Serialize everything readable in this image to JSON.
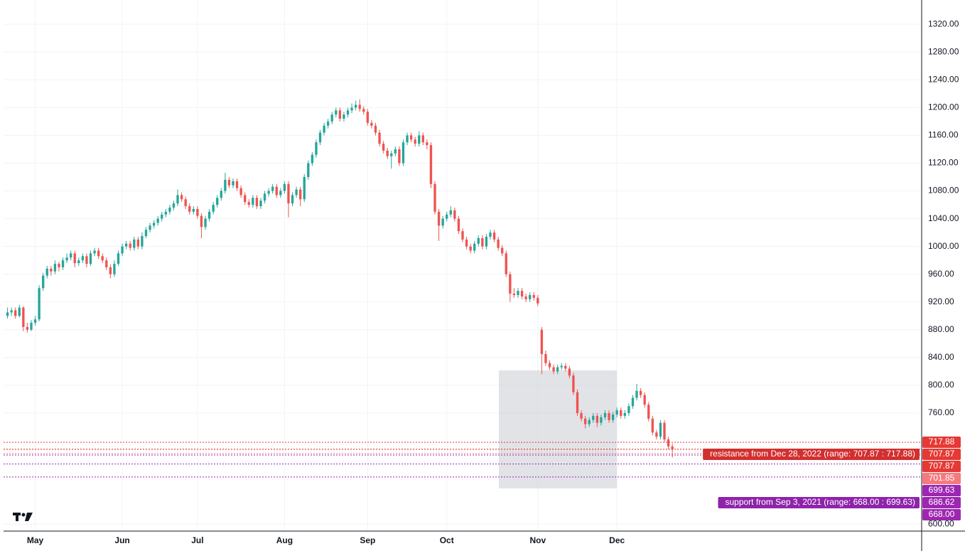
{
  "chart_data": {
    "type": "candlestick",
    "series": [
      {
        "up_color": "#26a69a",
        "down_color": "#ef5350",
        "values": [
          [
            900,
            912,
            896,
            905
          ],
          [
            905,
            912,
            900,
            908
          ],
          [
            908,
            912,
            896,
            900
          ],
          [
            900,
            916,
            898,
            912
          ],
          [
            912,
            914,
            878,
            884
          ],
          [
            884,
            890,
            876,
            880
          ],
          [
            880,
            894,
            878,
            890
          ],
          [
            890,
            900,
            886,
            895
          ],
          [
            895,
            944,
            892,
            940
          ],
          [
            940,
            962,
            936,
            958
          ],
          [
            958,
            972,
            954,
            968
          ],
          [
            968,
            972,
            958,
            964
          ],
          [
            964,
            980,
            960,
            975
          ],
          [
            975,
            978,
            964,
            970
          ],
          [
            970,
            984,
            966,
            980
          ],
          [
            980,
            990,
            976,
            984
          ],
          [
            984,
            994,
            980,
            990
          ],
          [
            990,
            994,
            970,
            976
          ],
          [
            976,
            984,
            972,
            980
          ],
          [
            980,
            990,
            976,
            986
          ],
          [
            986,
            990,
            970,
            975
          ],
          [
            975,
            994,
            972,
            990
          ],
          [
            990,
            998,
            986,
            994
          ],
          [
            994,
            998,
            982,
            986
          ],
          [
            986,
            990,
            976,
            980
          ],
          [
            980,
            984,
            966,
            970
          ],
          [
            970,
            974,
            954,
            960
          ],
          [
            960,
            980,
            956,
            975
          ],
          [
            975,
            994,
            972,
            990
          ],
          [
            990,
            1004,
            986,
            1000
          ],
          [
            1000,
            1008,
            996,
            1004
          ],
          [
            1004,
            1008,
            994,
            998
          ],
          [
            998,
            1014,
            994,
            1010
          ],
          [
            1010,
            1014,
            996,
            1000
          ],
          [
            1000,
            1020,
            996,
            1015
          ],
          [
            1015,
            1028,
            1012,
            1024
          ],
          [
            1024,
            1034,
            1020,
            1030
          ],
          [
            1030,
            1038,
            1026,
            1034
          ],
          [
            1034,
            1044,
            1030,
            1040
          ],
          [
            1040,
            1050,
            1036,
            1046
          ],
          [
            1046,
            1054,
            1042,
            1050
          ],
          [
            1050,
            1060,
            1046,
            1056
          ],
          [
            1056,
            1066,
            1052,
            1062
          ],
          [
            1062,
            1082,
            1058,
            1074
          ],
          [
            1074,
            1078,
            1064,
            1068
          ],
          [
            1068,
            1072,
            1054,
            1058
          ],
          [
            1058,
            1062,
            1046,
            1050
          ],
          [
            1050,
            1058,
            1046,
            1054
          ],
          [
            1054,
            1058,
            1040,
            1044
          ],
          [
            1044,
            1048,
            1012,
            1028
          ],
          [
            1028,
            1044,
            1024,
            1040
          ],
          [
            1040,
            1054,
            1036,
            1050
          ],
          [
            1050,
            1064,
            1046,
            1060
          ],
          [
            1060,
            1074,
            1056,
            1070
          ],
          [
            1070,
            1084,
            1066,
            1080
          ],
          [
            1080,
            1106,
            1076,
            1096
          ],
          [
            1096,
            1100,
            1084,
            1088
          ],
          [
            1088,
            1098,
            1084,
            1094
          ],
          [
            1094,
            1098,
            1080,
            1084
          ],
          [
            1084,
            1088,
            1070,
            1074
          ],
          [
            1074,
            1078,
            1060,
            1064
          ],
          [
            1064,
            1068,
            1056,
            1060
          ],
          [
            1060,
            1074,
            1056,
            1070
          ],
          [
            1070,
            1074,
            1054,
            1058
          ],
          [
            1058,
            1070,
            1054,
            1066
          ],
          [
            1066,
            1080,
            1062,
            1076
          ],
          [
            1076,
            1084,
            1072,
            1080
          ],
          [
            1080,
            1090,
            1076,
            1086
          ],
          [
            1086,
            1090,
            1070,
            1074
          ],
          [
            1074,
            1084,
            1070,
            1080
          ],
          [
            1080,
            1094,
            1076,
            1090
          ],
          [
            1090,
            1094,
            1042,
            1062
          ],
          [
            1062,
            1078,
            1058,
            1074
          ],
          [
            1074,
            1086,
            1070,
            1082
          ],
          [
            1082,
            1086,
            1058,
            1068
          ],
          [
            1068,
            1104,
            1064,
            1100
          ],
          [
            1100,
            1124,
            1096,
            1120
          ],
          [
            1120,
            1136,
            1116,
            1132
          ],
          [
            1132,
            1154,
            1128,
            1150
          ],
          [
            1150,
            1168,
            1146,
            1164
          ],
          [
            1164,
            1178,
            1160,
            1174
          ],
          [
            1174,
            1184,
            1170,
            1180
          ],
          [
            1180,
            1194,
            1176,
            1190
          ],
          [
            1190,
            1200,
            1186,
            1196
          ],
          [
            1196,
            1200,
            1180,
            1184
          ],
          [
            1184,
            1194,
            1180,
            1190
          ],
          [
            1190,
            1200,
            1186,
            1196
          ],
          [
            1196,
            1206,
            1192,
            1200
          ],
          [
            1200,
            1210,
            1196,
            1204
          ],
          [
            1204,
            1212,
            1194,
            1198
          ],
          [
            1198,
            1202,
            1190,
            1194
          ],
          [
            1194,
            1198,
            1174,
            1178
          ],
          [
            1178,
            1182,
            1170,
            1174
          ],
          [
            1174,
            1178,
            1160,
            1164
          ],
          [
            1164,
            1168,
            1144,
            1148
          ],
          [
            1148,
            1152,
            1134,
            1138
          ],
          [
            1138,
            1142,
            1126,
            1130
          ],
          [
            1130,
            1138,
            1112,
            1134
          ],
          [
            1134,
            1144,
            1130,
            1140
          ],
          [
            1140,
            1144,
            1116,
            1120
          ],
          [
            1120,
            1154,
            1116,
            1150
          ],
          [
            1150,
            1164,
            1146,
            1160
          ],
          [
            1160,
            1164,
            1150,
            1154
          ],
          [
            1154,
            1158,
            1144,
            1148
          ],
          [
            1148,
            1166,
            1144,
            1160
          ],
          [
            1160,
            1164,
            1146,
            1150
          ],
          [
            1150,
            1154,
            1140,
            1146
          ],
          [
            1146,
            1150,
            1084,
            1090
          ],
          [
            1090,
            1094,
            1046,
            1050
          ],
          [
            1050,
            1054,
            1008,
            1030
          ],
          [
            1030,
            1044,
            1026,
            1040
          ],
          [
            1040,
            1050,
            1036,
            1046
          ],
          [
            1046,
            1058,
            1042,
            1052
          ],
          [
            1052,
            1056,
            1036,
            1040
          ],
          [
            1040,
            1044,
            1018,
            1022
          ],
          [
            1022,
            1026,
            1006,
            1010
          ],
          [
            1010,
            1014,
            996,
            1000
          ],
          [
            1000,
            1004,
            990,
            994
          ],
          [
            994,
            1008,
            990,
            1004
          ],
          [
            1004,
            1016,
            1000,
            1012
          ],
          [
            1012,
            1016,
            996,
            1000
          ],
          [
            1000,
            1018,
            996,
            1014
          ],
          [
            1014,
            1024,
            1010,
            1020
          ],
          [
            1020,
            1024,
            1006,
            1010
          ],
          [
            1010,
            1014,
            994,
            998
          ],
          [
            998,
            1002,
            986,
            990
          ],
          [
            990,
            994,
            956,
            960
          ],
          [
            960,
            964,
            920,
            932
          ],
          [
            932,
            940,
            926,
            930
          ],
          [
            930,
            940,
            926,
            936
          ],
          [
            936,
            940,
            924,
            928
          ],
          [
            928,
            932,
            920,
            924
          ],
          [
            924,
            934,
            920,
            930
          ],
          [
            930,
            934,
            922,
            926
          ],
          [
            926,
            930,
            914,
            918
          ],
          [
            880,
            884,
            816,
            845
          ],
          [
            845,
            850,
            828,
            832
          ],
          [
            832,
            836,
            822,
            826
          ],
          [
            826,
            830,
            816,
            820
          ],
          [
            820,
            830,
            816,
            826
          ],
          [
            826,
            832,
            822,
            828
          ],
          [
            828,
            832,
            820,
            824
          ],
          [
            824,
            828,
            810,
            814
          ],
          [
            814,
            818,
            786,
            790
          ],
          [
            790,
            794,
            756,
            760
          ],
          [
            760,
            764,
            748,
            752
          ],
          [
            752,
            756,
            738,
            744
          ],
          [
            744,
            754,
            740,
            750
          ],
          [
            750,
            760,
            746,
            756
          ],
          [
            756,
            760,
            740,
            746
          ],
          [
            746,
            758,
            742,
            754
          ],
          [
            754,
            764,
            750,
            760
          ],
          [
            760,
            764,
            746,
            750
          ],
          [
            750,
            762,
            746,
            758
          ],
          [
            758,
            768,
            754,
            764
          ],
          [
            764,
            768,
            752,
            756
          ],
          [
            756,
            764,
            752,
            760
          ],
          [
            760,
            774,
            756,
            770
          ],
          [
            770,
            786,
            766,
            782
          ],
          [
            782,
            802,
            778,
            792
          ],
          [
            792,
            796,
            782,
            786
          ],
          [
            786,
            790,
            768,
            772
          ],
          [
            772,
            776,
            748,
            752
          ],
          [
            752,
            756,
            728,
            732
          ],
          [
            732,
            736,
            722,
            726
          ],
          [
            726,
            750,
            722,
            746
          ],
          [
            746,
            750,
            718,
            722
          ],
          [
            722,
            726,
            708,
            712
          ],
          [
            712,
            716,
            696,
            708
          ]
        ]
      }
    ],
    "xlim": [
      -1,
      231
    ],
    "xticks": [
      {
        "value": 7,
        "label": "May"
      },
      {
        "value": 29,
        "label": "Jun"
      },
      {
        "value": 48,
        "label": "Jul"
      },
      {
        "value": 70,
        "label": "Aug"
      },
      {
        "value": 91,
        "label": "Sep"
      },
      {
        "value": 111,
        "label": "Oct"
      },
      {
        "value": 134,
        "label": "Nov"
      },
      {
        "value": 154,
        "label": "Dec"
      }
    ],
    "ylim": [
      590,
      1355
    ],
    "yticks": [
      {
        "value": 600,
        "label": "600.00"
      },
      {
        "value": 760,
        "label": "760.00"
      },
      {
        "value": 800,
        "label": "800.00"
      },
      {
        "value": 840,
        "label": "840.00"
      },
      {
        "value": 880,
        "label": "880.00"
      },
      {
        "value": 920,
        "label": "920.00"
      },
      {
        "value": 960,
        "label": "960.00"
      },
      {
        "value": 1000,
        "label": "1000.00"
      },
      {
        "value": 1040,
        "label": "1040.00"
      },
      {
        "value": 1080,
        "label": "1080.00"
      },
      {
        "value": 1120,
        "label": "1120.00"
      },
      {
        "value": 1160,
        "label": "1160.00"
      },
      {
        "value": 1200,
        "label": "1200.00"
      },
      {
        "value": 1240,
        "label": "1240.00"
      },
      {
        "value": 1280,
        "label": "1280.00"
      },
      {
        "value": 1320,
        "label": "1320.00"
      }
    ],
    "grid": true,
    "levels": [
      {
        "value": 717.88,
        "label": "717.88",
        "color": "#e53935"
      },
      {
        "value": 707.87,
        "label": "707.87",
        "color": "#e53935"
      },
      {
        "value": 707.87,
        "label": "707.87",
        "color": "#e53935"
      },
      {
        "value": 701.85,
        "label": "701.85",
        "color": "#f47a7e"
      },
      {
        "value": 699.63,
        "label": "699.63",
        "color": "#9c27b0"
      },
      {
        "value": 686.62,
        "label": "686.62",
        "color": "#9c27b0"
      },
      {
        "value": 668.0,
        "label": "668.00",
        "color": "#9c27b0"
      }
    ],
    "annotations": [
      {
        "text": "resistance from Dec 28, 2022 (range: 707.87 : 717.88)",
        "color": "#d32f2f"
      },
      {
        "text": "support from Sep 3, 2021 (range: 668.00 : 699.63)",
        "color": "#8e24aa"
      }
    ]
  }
}
